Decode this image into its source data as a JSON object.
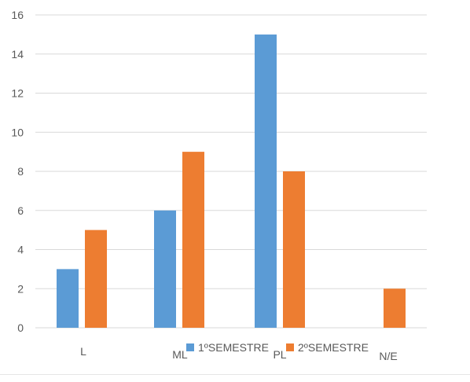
{
  "chart_data": {
    "type": "bar",
    "title": "",
    "xlabel": "",
    "ylabel": "",
    "categories": [
      "L",
      "ML",
      "PL",
      "N/E"
    ],
    "series": [
      {
        "name": "1ºSEMESTRE",
        "values": [
          3,
          6,
          15,
          null
        ],
        "color": "#5b9bd5"
      },
      {
        "name": "2ºSEMESTRE",
        "values": [
          5,
          9,
          8,
          2
        ],
        "color": "#ed7d31"
      }
    ],
    "ylim": [
      0,
      16
    ],
    "yticks": [
      0,
      2,
      4,
      6,
      8,
      10,
      12,
      14,
      16
    ],
    "grid": true,
    "legend": "bottom"
  }
}
